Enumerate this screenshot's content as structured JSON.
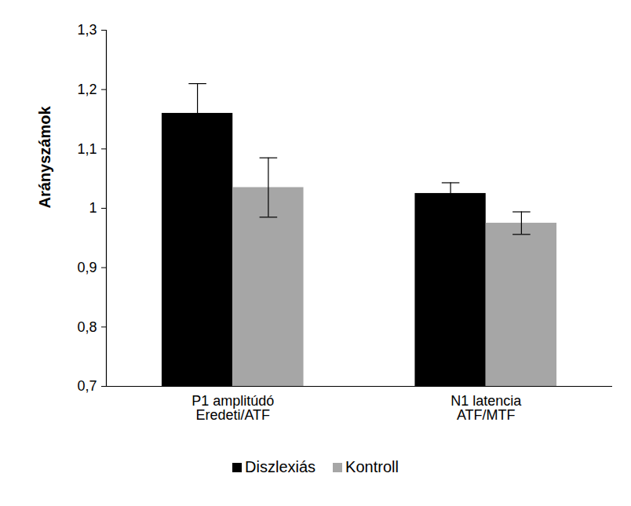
{
  "chart_data": {
    "type": "bar",
    "y_label": "Arányszámok",
    "categories": [
      "P1 amplitúdó\nEredeti/ATF",
      "N1 latencia\nATF/MTF"
    ],
    "series": [
      {
        "name": "Diszlexiás",
        "color": "#000000",
        "values": [
          1.16,
          1.025
        ],
        "errors": [
          0.05,
          0.018
        ]
      },
      {
        "name": "Kontroll",
        "color": "#a6a6a6",
        "values": [
          1.035,
          0.975
        ],
        "errors": [
          0.05,
          0.019
        ]
      }
    ],
    "ylim": [
      0.7,
      1.3
    ],
    "yticks": [
      {
        "value": 0.7,
        "label": "0,7"
      },
      {
        "value": 0.8,
        "label": "0,8"
      },
      {
        "value": 0.9,
        "label": "0,9"
      },
      {
        "value": 1,
        "label": "1"
      },
      {
        "value": 1.1,
        "label": "1,1"
      },
      {
        "value": 1.2,
        "label": "1,2"
      },
      {
        "value": 1.3,
        "label": "1,3"
      }
    ],
    "grid": false,
    "legend": "bottom"
  }
}
